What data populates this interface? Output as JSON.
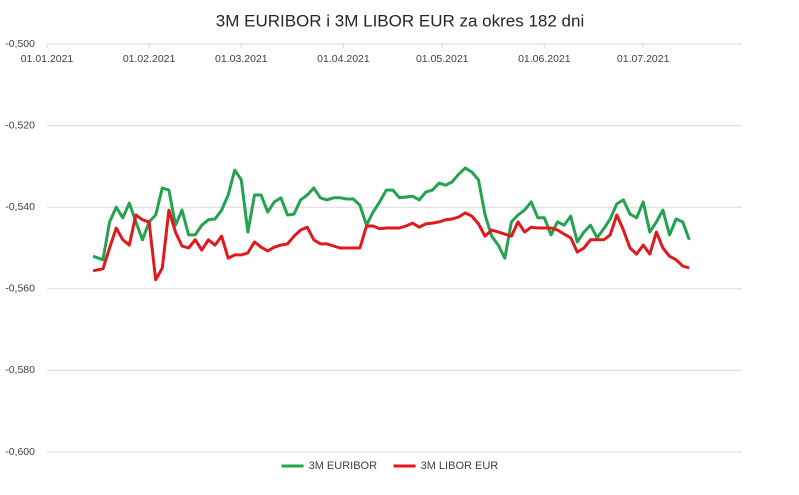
{
  "chart_data": {
    "type": "line",
    "title": "3M EURIBOR i 3M LIBOR EUR za okres 182 dni",
    "x": [
      "2021-01-15",
      "2021-01-18",
      "2021-01-20",
      "2021-01-22",
      "2021-01-24",
      "2021-01-26",
      "2021-01-28",
      "2021-01-30",
      "2021-02-01",
      "2021-02-03",
      "2021-02-05",
      "2021-02-07",
      "2021-02-09",
      "2021-02-11",
      "2021-02-13",
      "2021-02-15",
      "2021-02-17",
      "2021-02-19",
      "2021-02-21",
      "2021-02-23",
      "2021-02-25",
      "2021-02-27",
      "2021-03-01",
      "2021-03-03",
      "2021-03-05",
      "2021-03-07",
      "2021-03-09",
      "2021-03-11",
      "2021-03-13",
      "2021-03-15",
      "2021-03-17",
      "2021-03-19",
      "2021-03-21",
      "2021-03-23",
      "2021-03-25",
      "2021-03-27",
      "2021-03-29",
      "2021-03-31",
      "2021-04-02",
      "2021-04-04",
      "2021-04-06",
      "2021-04-08",
      "2021-04-10",
      "2021-04-12",
      "2021-04-14",
      "2021-04-16",
      "2021-04-18",
      "2021-04-20",
      "2021-04-22",
      "2021-04-24",
      "2021-04-26",
      "2021-04-28",
      "2021-04-30",
      "2021-05-02",
      "2021-05-04",
      "2021-05-06",
      "2021-05-08",
      "2021-05-10",
      "2021-05-12",
      "2021-05-14",
      "2021-05-16",
      "2021-05-18",
      "2021-05-20",
      "2021-05-22",
      "2021-05-24",
      "2021-05-26",
      "2021-05-28",
      "2021-05-30",
      "2021-06-01",
      "2021-06-03",
      "2021-06-05",
      "2021-06-07",
      "2021-06-09",
      "2021-06-11",
      "2021-06-13",
      "2021-06-15",
      "2021-06-17",
      "2021-06-19",
      "2021-06-21",
      "2021-06-23",
      "2021-06-25",
      "2021-06-27",
      "2021-06-29",
      "2021-07-01",
      "2021-07-03",
      "2021-07-05",
      "2021-07-07",
      "2021-07-09",
      "2021-07-11",
      "2021-07-13",
      "2021-07-15"
    ],
    "series": [
      {
        "name": "3M EURIBOR",
        "color": "#25a24f",
        "values": [
          -0.552,
          -0.5529,
          -0.5436,
          -0.54,
          -0.5426,
          -0.539,
          -0.5436,
          -0.548,
          -0.5436,
          -0.5419,
          -0.5353,
          -0.5358,
          -0.5444,
          -0.5407,
          -0.5468,
          -0.5468,
          -0.5444,
          -0.5431,
          -0.5429,
          -0.5407,
          -0.537,
          -0.5309,
          -0.5333,
          -0.5461,
          -0.537,
          -0.537,
          -0.5412,
          -0.5387,
          -0.5377,
          -0.5419,
          -0.5417,
          -0.5382,
          -0.537,
          -0.5353,
          -0.5377,
          -0.5382,
          -0.5377,
          -0.5377,
          -0.538,
          -0.538,
          -0.5395,
          -0.5444,
          -0.5412,
          -0.5387,
          -0.5358,
          -0.5358,
          -0.5377,
          -0.5375,
          -0.5373,
          -0.5382,
          -0.5363,
          -0.5358,
          -0.5341,
          -0.5346,
          -0.5338,
          -0.5319,
          -0.5304,
          -0.5314,
          -0.5333,
          -0.5419,
          -0.5471,
          -0.5493,
          -0.5525,
          -0.5436,
          -0.5419,
          -0.5407,
          -0.5387,
          -0.5426,
          -0.5426,
          -0.5468,
          -0.5436,
          -0.5444,
          -0.5422,
          -0.5485,
          -0.5461,
          -0.5444,
          -0.5475,
          -0.5453,
          -0.5429,
          -0.5392,
          -0.5382,
          -0.5417,
          -0.5426,
          -0.5387,
          -0.5461,
          -0.5436,
          -0.5407,
          -0.5468,
          -0.5429,
          -0.5436,
          -0.548
        ]
      },
      {
        "name": "3M LIBOR EUR",
        "color": "#e0191c",
        "values": [
          -0.5556,
          -0.5551,
          -0.55,
          -0.5451,
          -0.548,
          -0.5493,
          -0.5419,
          -0.5431,
          -0.5436,
          -0.5578,
          -0.5549,
          -0.5407,
          -0.5461,
          -0.5495,
          -0.55,
          -0.548,
          -0.5505,
          -0.548,
          -0.5493,
          -0.5471,
          -0.5525,
          -0.5517,
          -0.5517,
          -0.5512,
          -0.5485,
          -0.5498,
          -0.5507,
          -0.5498,
          -0.5493,
          -0.549,
          -0.5471,
          -0.5456,
          -0.5449,
          -0.548,
          -0.549,
          -0.549,
          -0.5495,
          -0.55,
          -0.55,
          -0.55,
          -0.55,
          -0.5446,
          -0.5446,
          -0.5453,
          -0.5451,
          -0.5451,
          -0.5451,
          -0.5446,
          -0.5439,
          -0.5449,
          -0.5441,
          -0.5439,
          -0.5436,
          -0.5431,
          -0.5429,
          -0.5424,
          -0.5414,
          -0.5422,
          -0.5441,
          -0.5471,
          -0.5456,
          -0.5461,
          -0.5466,
          -0.5471,
          -0.5436,
          -0.5461,
          -0.5449,
          -0.5451,
          -0.5451,
          -0.5451,
          -0.5456,
          -0.5466,
          -0.5475,
          -0.551,
          -0.55,
          -0.548,
          -0.548,
          -0.548,
          -0.5468,
          -0.5419,
          -0.5456,
          -0.55,
          -0.5515,
          -0.5493,
          -0.5515,
          -0.5461,
          -0.55,
          -0.552,
          -0.5529,
          -0.5544,
          -0.5549
        ]
      }
    ],
    "xlim": [
      "2021-01-01",
      "2021-07-31"
    ],
    "xticks": [
      {
        "value": "2021-01-01",
        "label": "01.01.2021"
      },
      {
        "value": "2021-02-01",
        "label": "01.02.2021"
      },
      {
        "value": "2021-03-01",
        "label": "01.03.2021"
      },
      {
        "value": "2021-04-01",
        "label": "01.04.2021"
      },
      {
        "value": "2021-05-01",
        "label": "01.05.2021"
      },
      {
        "value": "2021-06-01",
        "label": "01.06.2021"
      },
      {
        "value": "2021-07-01",
        "label": "01.07.2021"
      }
    ],
    "ylim": [
      -0.6,
      -0.5
    ],
    "yticks": [
      {
        "value": -0.5,
        "label": "-0,500"
      },
      {
        "value": -0.52,
        "label": "-0,520"
      },
      {
        "value": -0.54,
        "label": "-0,540"
      },
      {
        "value": -0.56,
        "label": "-0,560"
      },
      {
        "value": -0.58,
        "label": "-0,580"
      },
      {
        "value": -0.6,
        "label": "-0,600"
      }
    ],
    "grid": true,
    "legend": "bottom"
  }
}
